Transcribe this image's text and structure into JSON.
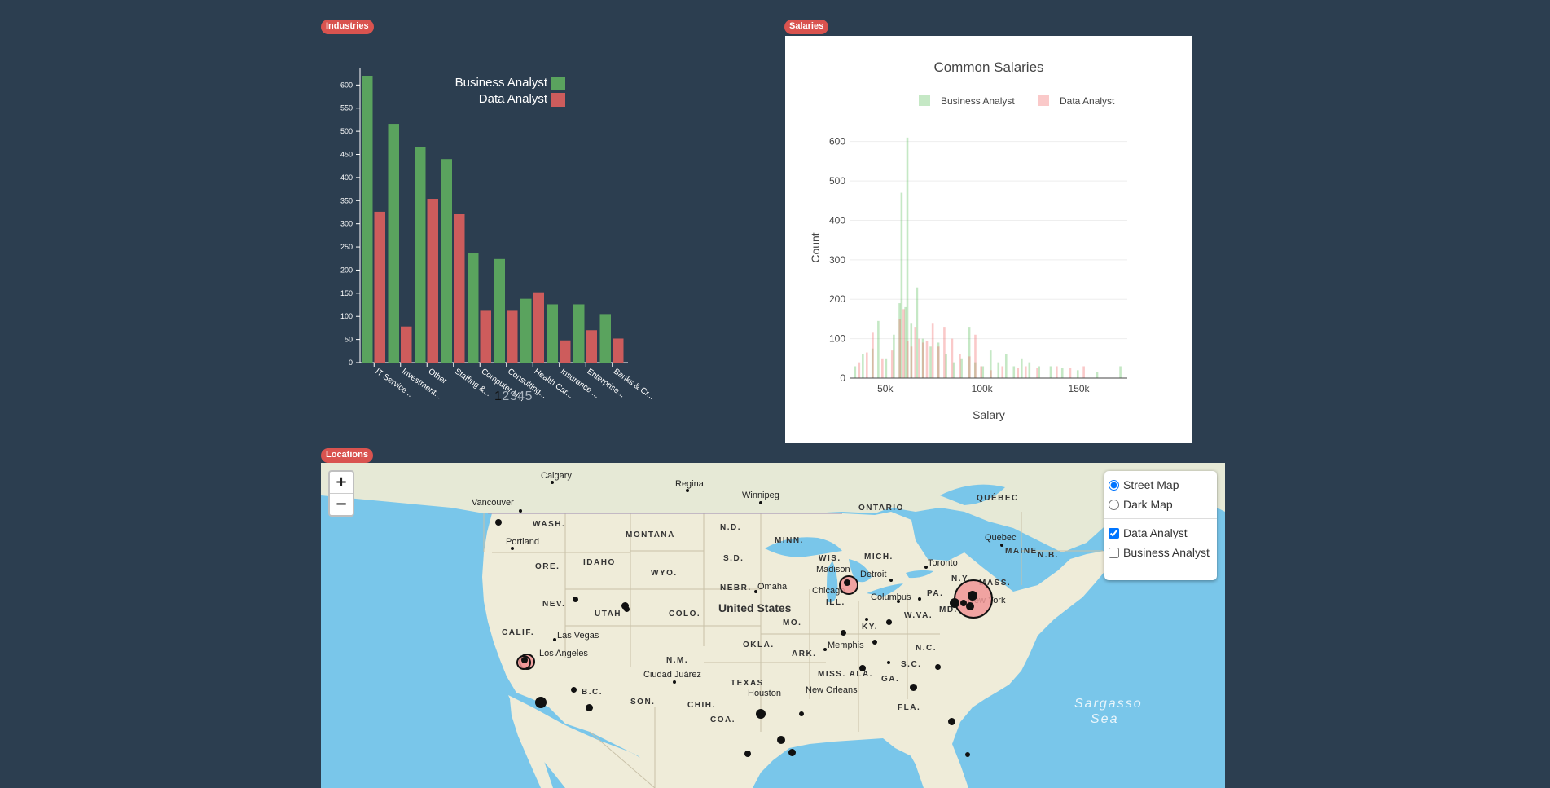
{
  "badges": {
    "industries": "Industries",
    "salaries": "Salaries",
    "locations": "Locations"
  },
  "colors": {
    "background": "#2c3e50",
    "business": "#5aa35e",
    "data": "#cd5c5c",
    "badge": "#d9534f",
    "water": "#79c6ea",
    "land": "#efecd9"
  },
  "industries": {
    "chart_data": {
      "type": "bar",
      "categories": [
        "IT Service...",
        "Investment...",
        "Other",
        "Staffing &...",
        "Computer H...",
        "Consulting...",
        "Health Car...",
        "Insurance ...",
        "Enterprise...",
        "Banks & Cr..."
      ],
      "series": [
        {
          "name": "Business Analyst",
          "values": [
            620,
            516,
            466,
            440,
            236,
            224,
            138,
            126,
            126,
            105
          ]
        },
        {
          "name": "Data Analyst",
          "values": [
            326,
            78,
            354,
            322,
            112,
            112,
            152,
            48,
            70,
            52
          ]
        }
      ],
      "ylim": [
        0,
        620
      ],
      "yticks": [
        0,
        50,
        100,
        150,
        200,
        250,
        300,
        350,
        400,
        450,
        500,
        550,
        600
      ],
      "legend": "top-right"
    },
    "pager": [
      "1",
      "2",
      "3",
      "4",
      "5"
    ]
  },
  "salaries": {
    "chart_data": {
      "type": "bar",
      "title": "Common Salaries",
      "xlabel": "Salary",
      "ylabel": "Count",
      "xlim": [
        32000,
        175000
      ],
      "ylim": [
        0,
        620
      ],
      "xticks": [
        {
          "v": 50000,
          "label": "50k"
        },
        {
          "v": 100000,
          "label": "100k"
        },
        {
          "v": 150000,
          "label": "150k"
        }
      ],
      "yticks": [
        0,
        100,
        200,
        300,
        400,
        500,
        600
      ],
      "legend": "top",
      "series": [
        {
          "name": "Business Analyst",
          "bins": [
            [
              35000,
              30
            ],
            [
              39000,
              60
            ],
            [
              44000,
              75
            ],
            [
              47000,
              145
            ],
            [
              51000,
              50
            ],
            [
              55000,
              110
            ],
            [
              58000,
              190
            ],
            [
              59000,
              470
            ],
            [
              61000,
              180
            ],
            [
              62000,
              610
            ],
            [
              64000,
              140
            ],
            [
              67000,
              230
            ],
            [
              70000,
              100
            ],
            [
              74000,
              80
            ],
            [
              78000,
              90
            ],
            [
              82000,
              60
            ],
            [
              86000,
              40
            ],
            [
              90000,
              50
            ],
            [
              94000,
              130
            ],
            [
              97000,
              40
            ],
            [
              101000,
              30
            ],
            [
              105000,
              70
            ],
            [
              109000,
              40
            ],
            [
              113000,
              60
            ],
            [
              117000,
              30
            ],
            [
              121000,
              50
            ],
            [
              125000,
              40
            ],
            [
              130000,
              30
            ],
            [
              136000,
              30
            ],
            [
              142000,
              25
            ],
            [
              150000,
              20
            ],
            [
              160000,
              15
            ],
            [
              172000,
              30
            ]
          ]
        },
        {
          "name": "Data Analyst",
          "bins": [
            [
              36000,
              40
            ],
            [
              40000,
              65
            ],
            [
              43000,
              115
            ],
            [
              48000,
              50
            ],
            [
              53000,
              70
            ],
            [
              57000,
              150
            ],
            [
              59000,
              175
            ],
            [
              61000,
              95
            ],
            [
              63000,
              80
            ],
            [
              65000,
              130
            ],
            [
              67000,
              100
            ],
            [
              69000,
              90
            ],
            [
              71000,
              95
            ],
            [
              74000,
              140
            ],
            [
              77000,
              80
            ],
            [
              80000,
              130
            ],
            [
              84000,
              100
            ],
            [
              88000,
              60
            ],
            [
              93000,
              55
            ],
            [
              96000,
              110
            ],
            [
              99000,
              30
            ],
            [
              104000,
              20
            ],
            [
              110000,
              30
            ],
            [
              118000,
              25
            ],
            [
              122000,
              30
            ],
            [
              128000,
              25
            ],
            [
              138000,
              30
            ],
            [
              145000,
              25
            ],
            [
              152000,
              30
            ]
          ]
        }
      ]
    }
  },
  "map": {
    "zoom_in": "+",
    "zoom_out": "−",
    "layers": {
      "street_map": "Street Map",
      "dark_map": "Dark Map",
      "data_analyst": "Data Analyst",
      "business_analyst": "Business Analyst"
    },
    "labels": {
      "calgary": "Calgary",
      "regina": "Regina",
      "winnipeg": "Winnipeg",
      "ontario": "ONTARIO",
      "quebec_prov": "QUÉBEC",
      "vancouver": "Vancouver",
      "wash": "WASH.",
      "montana": "MONTANA",
      "nd": "N.D.",
      "minn": "MINN.",
      "quebec_city": "Quebec",
      "portland": "Portland",
      "idaho": "IDAHO",
      "ore": "ORE.",
      "wyo": "WYO.",
      "sd": "S.D.",
      "wis": "WIS.",
      "mich": "MICH.",
      "maine": "MAINE",
      "nb": "N.B.",
      "madison": "Madison",
      "toronto": "Toronto",
      "ny": "N.Y.",
      "mass": "MASS.",
      "nebr": "NEBR.",
      "omaha": "Omaha",
      "detroit": "Detroit",
      "chicago": "Chicago",
      "nev": "NEV.",
      "utah": "UTAH",
      "colo": "COLO.",
      "united_states": "United States",
      "ill": "ILL.",
      "columbus": "Columbus",
      "pa": "PA.",
      "new_york": "New York",
      "md": "MD.",
      "mo": "MO.",
      "wva": "W.VA.",
      "calif": "CALIF.",
      "las_vegas": "Las Vegas",
      "ky": "KY.",
      "okla": "OKLA.",
      "memphis": "Memphis",
      "nc": "N.C.",
      "los_angeles": "Los Angeles",
      "ark": "ARK.",
      "az": "N.M.",
      "sc": "S.C.",
      "miss_ala": "MISS. ALA.",
      "ga": "GA.",
      "ciudad_juarez": "Ciudad Juárez",
      "texas": "TEXAS",
      "bc": "B.C.",
      "houston": "Houston",
      "new_orleans": "New Orleans",
      "son": "SON.",
      "chih": "CHIH.",
      "fla": "FLA.",
      "coa": "COA.",
      "sargasso": "Sargasso",
      "sea": "Sea"
    }
  }
}
